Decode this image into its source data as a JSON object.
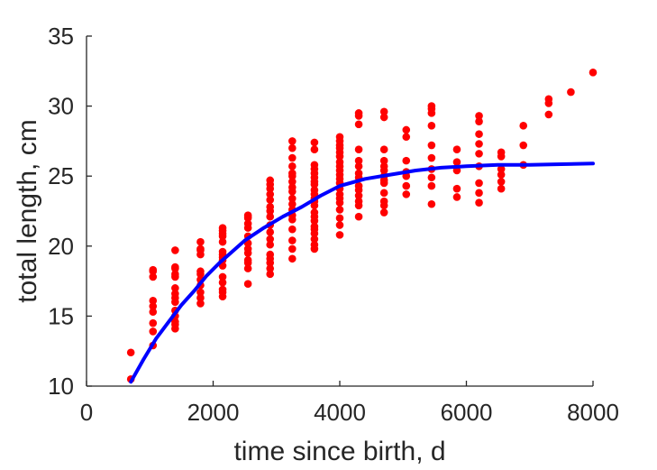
{
  "chart_data": {
    "type": "scatter",
    "xlabel": "time since birth, d",
    "ylabel": "total length, cm",
    "xlim": [
      0,
      8000
    ],
    "ylim": [
      10,
      35
    ],
    "xticks": [
      0,
      2000,
      4000,
      6000,
      8000
    ],
    "yticks": [
      10,
      15,
      20,
      25,
      30,
      35
    ],
    "grid": false,
    "colors": {
      "points": "#ff0000",
      "fit": "#0000ff",
      "axis": "#262626"
    },
    "series": [
      {
        "kind": "points",
        "x": [
          700,
          700,
          1050,
          1050,
          1050,
          1050,
          1050,
          1050,
          1050,
          1050,
          1050,
          1400,
          1400,
          1400,
          1400,
          1400,
          1400,
          1400,
          1400,
          1400,
          1400,
          1400,
          1400,
          1400,
          1400,
          1800,
          1800,
          1800,
          1800,
          1800,
          1800,
          1800,
          1800,
          1800,
          1800,
          1800,
          2150,
          2150,
          2150,
          2150,
          2150,
          2150,
          2150,
          2150,
          2150,
          2150,
          2150,
          2150,
          2150,
          2150,
          2150,
          2550,
          2550,
          2550,
          2550,
          2550,
          2550,
          2550,
          2550,
          2550,
          2550,
          2550,
          2550,
          2550,
          2900,
          2900,
          2900,
          2900,
          2900,
          2900,
          2900,
          2900,
          2900,
          2900,
          2900,
          2900,
          2900,
          2900,
          2900,
          2900,
          2900,
          3250,
          3250,
          3250,
          3250,
          3250,
          3250,
          3250,
          3250,
          3250,
          3250,
          3250,
          3250,
          3250,
          3250,
          3250,
          3250,
          3250,
          3250,
          3600,
          3600,
          3600,
          3600,
          3600,
          3600,
          3600,
          3600,
          3600,
          3600,
          3600,
          3600,
          3600,
          3600,
          3600,
          3600,
          3600,
          3600,
          3600,
          3600,
          3600,
          3600,
          4000,
          4000,
          4000,
          4000,
          4000,
          4000,
          4000,
          4000,
          4000,
          4000,
          4000,
          4000,
          4000,
          4000,
          4000,
          4000,
          4000,
          4000,
          4000,
          4000,
          4300,
          4300,
          4300,
          4300,
          4300,
          4300,
          4300,
          4300,
          4300,
          4300,
          4300,
          4300,
          4300,
          4300,
          4700,
          4700,
          4700,
          4700,
          4700,
          4700,
          4700,
          4700,
          4700,
          4700,
          4700,
          4700,
          4700,
          5050,
          5050,
          5050,
          5050,
          5050,
          5050,
          5050,
          5450,
          5450,
          5450,
          5450,
          5450,
          5450,
          5450,
          5450,
          5450,
          5450,
          5850,
          5850,
          5850,
          5850,
          5850,
          6200,
          6200,
          6200,
          6200,
          6200,
          6200,
          6200,
          6200,
          6200,
          6550,
          6550,
          6550,
          6550,
          6550,
          6550,
          6900,
          6900,
          6900,
          7300,
          7300,
          7300,
          7650,
          8000
        ],
        "y": [
          10.5,
          12.4,
          12.9,
          13.9,
          14.5,
          15.3,
          15.7,
          16.1,
          17.8,
          18.2,
          18.3,
          14.1,
          14.4,
          14.6,
          15.0,
          15.4,
          16.0,
          16.3,
          16.6,
          17.0,
          17.8,
          18.0,
          18.4,
          18.5,
          19.7,
          15.9,
          16.3,
          16.7,
          17.2,
          17.6,
          18.0,
          18.2,
          19.4,
          19.7,
          19.8,
          20.3,
          16.4,
          16.7,
          16.9,
          17.4,
          17.8,
          18.6,
          19.0,
          19.2,
          19.4,
          19.6,
          20.3,
          20.7,
          20.9,
          21.1,
          21.3,
          17.3,
          18.4,
          18.8,
          19.0,
          19.5,
          19.8,
          20.2,
          20.7,
          21.3,
          21.6,
          22.0,
          22.1,
          22.2,
          18.0,
          18.4,
          18.8,
          19.1,
          19.4,
          20.1,
          20.5,
          21.0,
          21.5,
          22.1,
          22.5,
          22.8,
          23.3,
          23.7,
          24.1,
          24.4,
          24.7,
          19.1,
          19.8,
          20.4,
          21.2,
          21.9,
          22.2,
          22.6,
          23.0,
          23.4,
          23.9,
          24.2,
          24.6,
          25.0,
          25.2,
          25.7,
          26.3,
          27.0,
          27.5,
          19.8,
          20.1,
          20.5,
          20.9,
          21.2,
          21.4,
          21.8,
          22.1,
          22.4,
          22.9,
          23.2,
          23.4,
          23.7,
          24.0,
          24.4,
          24.6,
          24.9,
          25.2,
          25.5,
          25.8,
          26.9,
          27.4,
          20.8,
          21.5,
          22.0,
          22.6,
          23.1,
          23.4,
          23.7,
          24.1,
          24.5,
          24.8,
          25.1,
          25.4,
          25.7,
          26.0,
          26.4,
          26.7,
          27.0,
          27.2,
          27.5,
          27.8,
          22.1,
          22.9,
          23.2,
          23.6,
          24.0,
          24.3,
          24.9,
          25.2,
          25.7,
          26.1,
          26.9,
          28.7,
          29.3,
          29.5,
          22.4,
          22.9,
          23.2,
          23.8,
          24.5,
          24.7,
          25.0,
          25.4,
          25.7,
          26.1,
          26.9,
          29.2,
          29.6,
          23.7,
          24.3,
          25.0,
          25.3,
          26.1,
          27.8,
          28.3,
          23.0,
          24.3,
          24.9,
          25.5,
          26.3,
          27.2,
          28.6,
          29.5,
          29.8,
          30.0,
          23.5,
          24.1,
          25.4,
          26.0,
          26.9,
          23.1,
          23.8,
          24.5,
          25.7,
          26.6,
          27.3,
          28.0,
          28.9,
          29.3,
          24.1,
          24.6,
          25.1,
          25.5,
          26.4,
          26.7,
          25.8,
          27.2,
          28.6,
          29.4,
          30.2,
          30.5,
          31.0,
          32.4
        ]
      },
      {
        "kind": "fit",
        "x": [
          700,
          900,
          1100,
          1300,
          1500,
          1700,
          1900,
          2100,
          2300,
          2500,
          2800,
          3100,
          3400,
          3700,
          4000,
          4400,
          4800,
          5200,
          5600,
          6000,
          6500,
          7000,
          7500,
          8000
        ],
        "y": [
          10.3,
          11.9,
          13.4,
          14.6,
          15.8,
          16.8,
          17.9,
          18.8,
          19.6,
          20.4,
          21.3,
          22.1,
          22.8,
          23.6,
          24.3,
          24.8,
          25.1,
          25.4,
          25.6,
          25.7,
          25.8,
          25.8,
          25.85,
          25.9
        ]
      }
    ]
  }
}
